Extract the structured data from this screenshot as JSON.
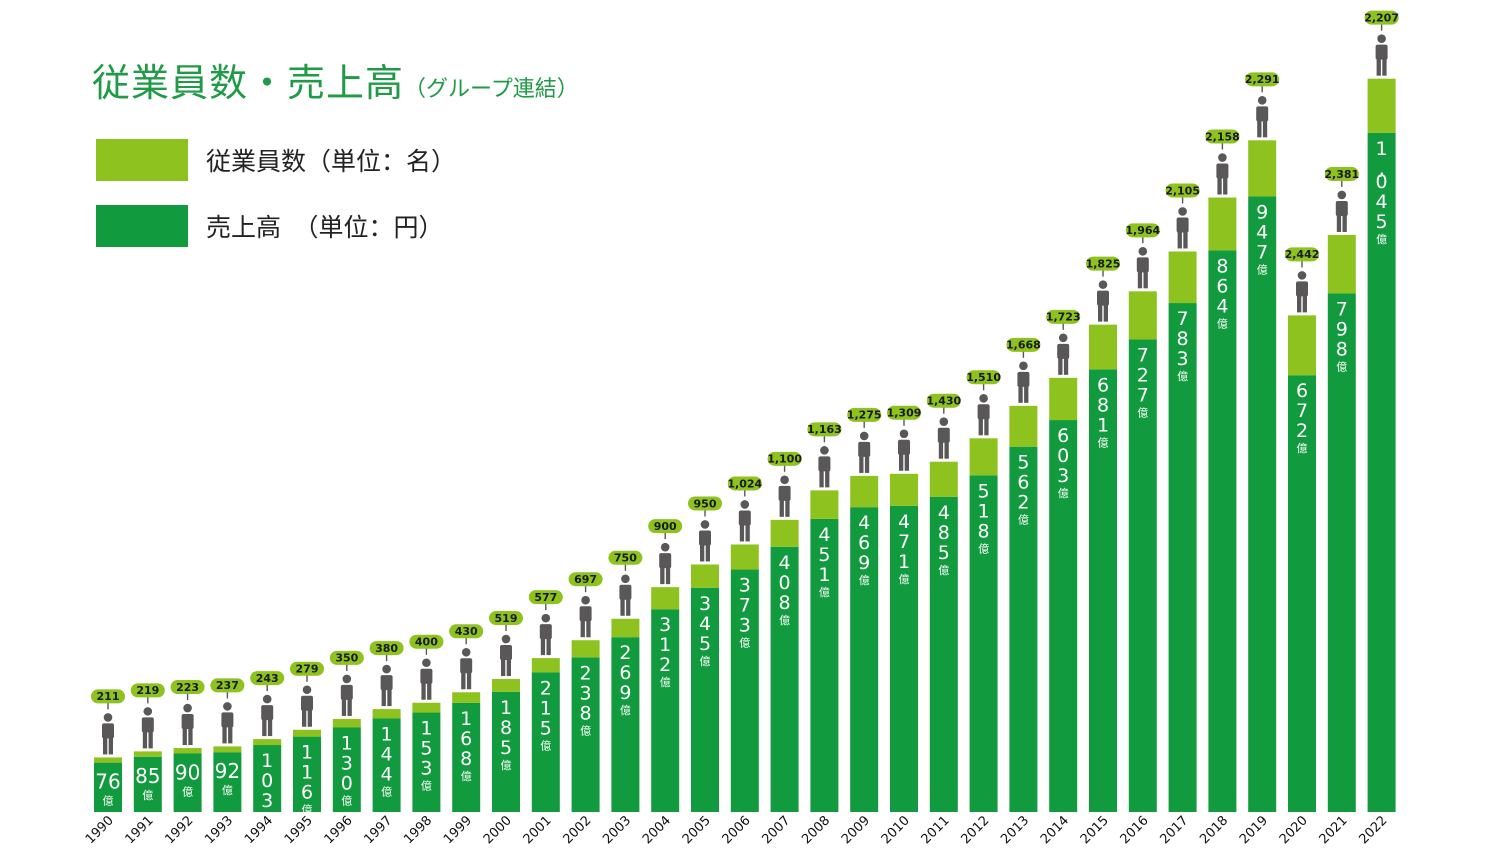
{
  "title": {
    "main": "従業員数・売上高",
    "sub": "（グループ連結）"
  },
  "legend": {
    "employees": {
      "label": "従業員数（単位：名）",
      "color": "#8dc21f"
    },
    "sales": {
      "label": "売上高　（単位：円）",
      "color": "#119b3e"
    }
  },
  "colors": {
    "person": "#595757",
    "year_text": "#111111",
    "value_text": "#ffffff",
    "label_text": "#1a1a1a"
  },
  "chart_data": {
    "type": "bar",
    "categories": [
      "1990",
      "1991",
      "1992",
      "1993",
      "1994",
      "1995",
      "1996",
      "1997",
      "1998",
      "1999",
      "2000",
      "2001",
      "2002",
      "2003",
      "2004",
      "2005",
      "2006",
      "2007",
      "2008",
      "2009",
      "2010",
      "2011",
      "2012",
      "2013",
      "2014",
      "2015",
      "2016",
      "2017",
      "2018",
      "2019",
      "2020",
      "2021",
      "2022"
    ],
    "series": [
      {
        "name": "売上高",
        "unit": "億",
        "values": [
          76,
          85,
          90,
          92,
          103,
          116,
          130,
          144,
          153,
          168,
          185,
          215,
          238,
          269,
          312,
          345,
          373,
          408,
          451,
          469,
          471,
          485,
          518,
          562,
          603,
          681,
          727,
          783,
          864,
          947,
          672,
          798,
          1045
        ],
        "labels": [
          "76",
          "85",
          "90",
          "92",
          "103",
          "116",
          "130",
          "144",
          "153",
          "168",
          "185",
          "215",
          "238",
          "269",
          "312",
          "345",
          "373",
          "408",
          "451",
          "469",
          "471",
          "485",
          "518",
          "562",
          "603",
          "681",
          "727",
          "783",
          "864",
          "947",
          "672",
          "798",
          "1,045"
        ]
      },
      {
        "name": "従業員数",
        "values": [
          211,
          219,
          223,
          237,
          243,
          279,
          350,
          380,
          400,
          430,
          519,
          577,
          697,
          750,
          900,
          950,
          1024,
          1100,
          1163,
          1275,
          1309,
          1430,
          1510,
          1668,
          1723,
          1825,
          1964,
          2105,
          2158,
          2291,
          2442,
          2381,
          2207
        ],
        "labels": [
          "211",
          "219",
          "223",
          "237",
          "243",
          "279",
          "350",
          "380",
          "400",
          "430",
          "519",
          "577",
          "697",
          "750",
          "900",
          "950",
          "1,024",
          "1,100",
          "1,163",
          "1,275",
          "1,309",
          "1,430",
          "1,510",
          "1,668",
          "1,723",
          "1,825",
          "1,964",
          "2,105",
          "2,158",
          "2,291",
          "2,442",
          "2,381",
          "2,207"
        ]
      }
    ]
  }
}
